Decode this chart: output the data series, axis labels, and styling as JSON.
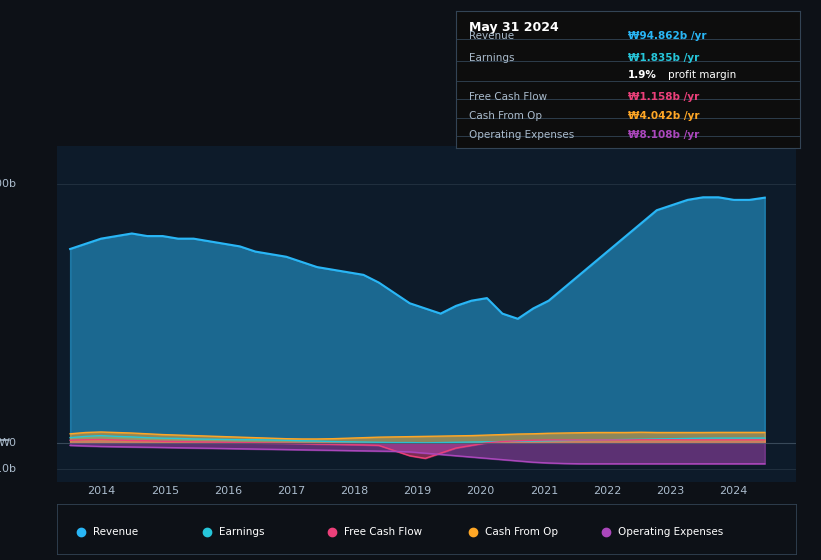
{
  "background_color": "#0d1117",
  "plot_bg_color": "#0d1b2a",
  "title": "May 31 2024",
  "colors": {
    "revenue": "#29b6f6",
    "earnings": "#26c6da",
    "free_cash_flow": "#ec407a",
    "cash_from_op": "#ffa726",
    "operating_expenses": "#ab47bc"
  },
  "legend_items": [
    "Revenue",
    "Earnings",
    "Free Cash Flow",
    "Cash From Op",
    "Operating Expenses"
  ],
  "info_box": {
    "title": "May 31 2024",
    "rows": [
      {
        "label": "Revenue",
        "value": "₩94.862b /yr",
        "value_color": "#29b6f6"
      },
      {
        "label": "Earnings",
        "value": "₩1.835b /yr",
        "value_color": "#26c6da"
      },
      {
        "label": "",
        "value": "1.9% profit margin",
        "value_color": "#ffffff"
      },
      {
        "label": "Free Cash Flow",
        "value": "₩1.158b /yr",
        "value_color": "#ec407a"
      },
      {
        "label": "Cash From Op",
        "value": "₩4.042b /yr",
        "value_color": "#ffa726"
      },
      {
        "label": "Operating Expenses",
        "value": "₩8.108b /yr",
        "value_color": "#ab47bc"
      }
    ]
  }
}
